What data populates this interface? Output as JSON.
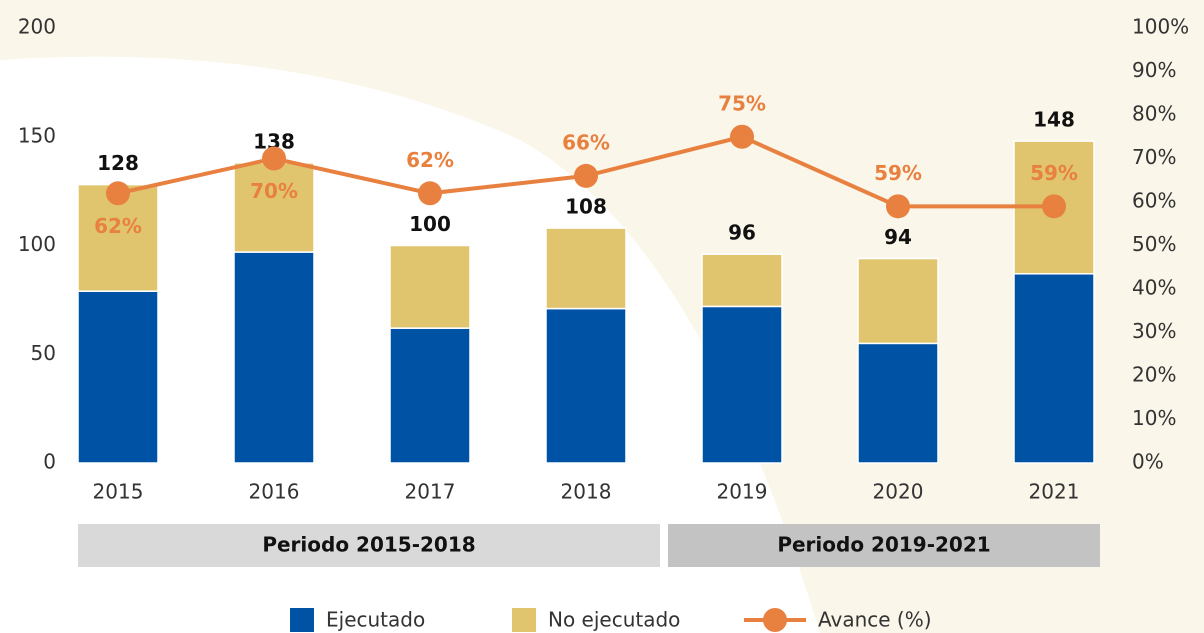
{
  "chart_data": {
    "type": "bar-line",
    "categories": [
      "2015",
      "2016",
      "2017",
      "2018",
      "2019",
      "2020",
      "2021"
    ],
    "series": [
      {
        "name": "Ejecutado",
        "color": "#0052a5",
        "values": [
          79,
          97,
          62,
          71,
          72,
          55,
          87
        ]
      },
      {
        "name": "No ejecutado",
        "color": "#e0c56e",
        "values": [
          49,
          41,
          38,
          37,
          24,
          39,
          61
        ]
      },
      {
        "name": "Avance (%)",
        "color": "#e8803f",
        "axis": "y2",
        "values": [
          62,
          70,
          62,
          66,
          75,
          59,
          59
        ],
        "value_labels": [
          "62%",
          "70%",
          "62%",
          "66%",
          "75%",
          "59%",
          "59%"
        ]
      }
    ],
    "totals": [
      128,
      138,
      100,
      108,
      96,
      94,
      148
    ],
    "ylim": [
      0,
      200
    ],
    "yticks": [
      0,
      50,
      100,
      150,
      200
    ],
    "y2lim": [
      0,
      100
    ],
    "y2ticks": [
      {
        "value": 0,
        "label": "0%"
      },
      {
        "value": 10,
        "label": "10%"
      },
      {
        "value": 20,
        "label": "20%"
      },
      {
        "value": 30,
        "label": "30%"
      },
      {
        "value": 40,
        "label": "40%"
      },
      {
        "value": 50,
        "label": "50%"
      },
      {
        "value": 60,
        "label": "60%"
      },
      {
        "value": 70,
        "label": "70%"
      },
      {
        "value": 80,
        "label": "80%"
      },
      {
        "value": 90,
        "label": "90%"
      },
      {
        "value": 100,
        "label": "100%"
      }
    ],
    "periods": [
      {
        "label": "Periodo 2015-2018",
        "from": "2015",
        "to": "2018",
        "color": "#d9d9d9"
      },
      {
        "label": "Periodo 2019-2021",
        "from": "2019",
        "to": "2021",
        "color": "#c3c3c3"
      }
    ],
    "legend": "bottom"
  }
}
